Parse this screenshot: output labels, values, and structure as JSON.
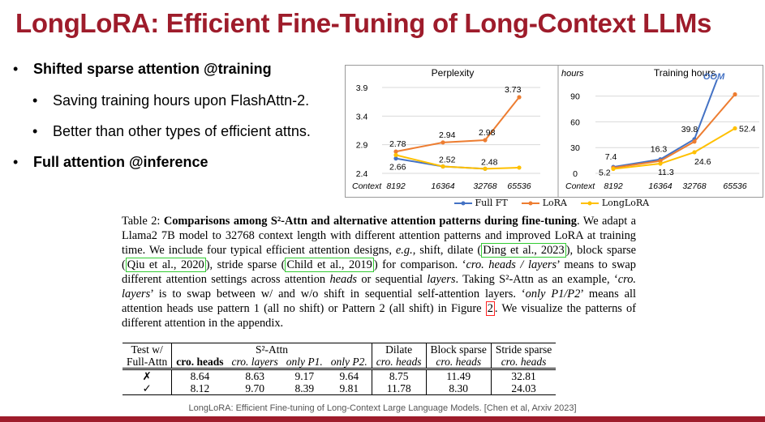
{
  "slide": {
    "title": "LongLoRA: Efficient Fine-Tuning of Long-Context LLMs",
    "bullets": [
      {
        "level": 1,
        "text": "Shifted sparse attention @training",
        "bold": true
      },
      {
        "level": 2,
        "text": "Saving training hours upon FlashAttn-2.",
        "bold": false
      },
      {
        "level": 2,
        "text": "Better than other types of efficient attns.",
        "bold": false
      },
      {
        "level": 1,
        "text": "Full attention @inference",
        "bold": true
      }
    ],
    "bullet_glyph": "•",
    "footer": "LongLoRA: Efficient Fine-tuning of Long-Context Large Language Models. [Chen et al, Arxiv 2023]",
    "colors": {
      "title": "#9e1c2b",
      "bar": "#9e1c2b",
      "full_ft": "#4472c4",
      "lora": "#ed7d31",
      "longlora": "#ffc000"
    }
  },
  "chart_data": [
    {
      "type": "line",
      "title": "Perplexity",
      "xlabel": "Context",
      "categories": [
        "8192",
        "16364",
        "32768",
        "65536"
      ],
      "yticks": [
        "2.4",
        "2.9",
        "3.4",
        "3.9"
      ],
      "ylim": [
        2.4,
        3.9
      ],
      "grid": "horizontal",
      "series": [
        {
          "name": "Full FT",
          "values": [
            2.66,
            2.52,
            2.48,
            null
          ]
        },
        {
          "name": "LoRA",
          "values": [
            2.78,
            2.94,
            2.98,
            3.73
          ]
        },
        {
          "name": "LongLoRA",
          "values": [
            2.72,
            2.52,
            2.48,
            2.5
          ]
        }
      ],
      "data_labels": [
        "2.78",
        "2.94",
        "2.98",
        "3.73",
        "2.66",
        "2.52",
        "2.48"
      ]
    },
    {
      "type": "line",
      "title": "Training hours",
      "ylabel": "hours",
      "xlabel": "Context",
      "categories": [
        "8192",
        "16364",
        "32768",
        "65536"
      ],
      "yticks": [
        "0",
        "30",
        "60",
        "90"
      ],
      "ylim": [
        0,
        100
      ],
      "grid": "horizontal",
      "annotation": "OOM",
      "series": [
        {
          "name": "Full FT",
          "values": [
            7.4,
            16.3,
            39.8,
            null
          ]
        },
        {
          "name": "LoRA",
          "values": [
            6.5,
            14.5,
            37.0,
            92.0
          ]
        },
        {
          "name": "LongLoRA",
          "values": [
            5.2,
            11.3,
            24.6,
            52.4
          ]
        }
      ],
      "data_labels": [
        "7.4",
        "16.3",
        "39.8",
        "5.2",
        "11.3",
        "24.6",
        "52.4"
      ]
    }
  ],
  "legend": [
    "Full FT",
    "LoRA",
    "LongLoRA"
  ],
  "caption": {
    "label": "Table 2:",
    "heading": "Comparisons among S²-Attn and alternative attention patterns during fine-tuning",
    "t1": ". We adapt a Llama2 7B model to 32768 context length with different attention patterns and improved LoRA at training time. We include four typical efficient attention designs, ",
    "eg": "e.g.",
    "t2": ", shift, dilate (",
    "cite1": "Ding et al., 2023",
    "t3": "), block sparse (",
    "cite2": "Qiu et al., 2020",
    "t4": "), stride sparse (",
    "cite3": "Child et al., 2019",
    "t5": ") for comparison. ‘",
    "em1": "cro. heads / layers",
    "t6": "’ means to swap different attention settings across attention ",
    "em2": "heads",
    "t7": " or sequential ",
    "em3": "layers",
    "t8": ". Taking S²-Attn as an example, ‘",
    "em4": "cro. layers",
    "t9": "’ is to swap between w/ and w/o shift in sequential self-attention layers. ‘",
    "em5": "only P1/P2",
    "t10": "’ means all attention heads use pattern 1 (all no shift) or Pattern 2 (all shift) in Figure ",
    "figref": "2",
    "t11": ". We visualize the patterns of different attention in the appendix."
  },
  "table": {
    "h1": [
      "Test w/",
      "S²-Attn",
      "Dilate",
      "Block sparse",
      "Stride sparse"
    ],
    "h2": [
      "Full-Attn",
      "cro. heads",
      "cro. layers",
      "only P1.",
      "only P2.",
      "cro. heads",
      "cro. heads",
      "cro. heads"
    ],
    "rows": [
      [
        "✗",
        "8.64",
        "8.63",
        "9.17",
        "9.64",
        "8.75",
        "11.49",
        "32.81"
      ],
      [
        "✓",
        "8.12",
        "9.70",
        "8.39",
        "9.81",
        "11.78",
        "8.30",
        "24.03"
      ]
    ]
  }
}
